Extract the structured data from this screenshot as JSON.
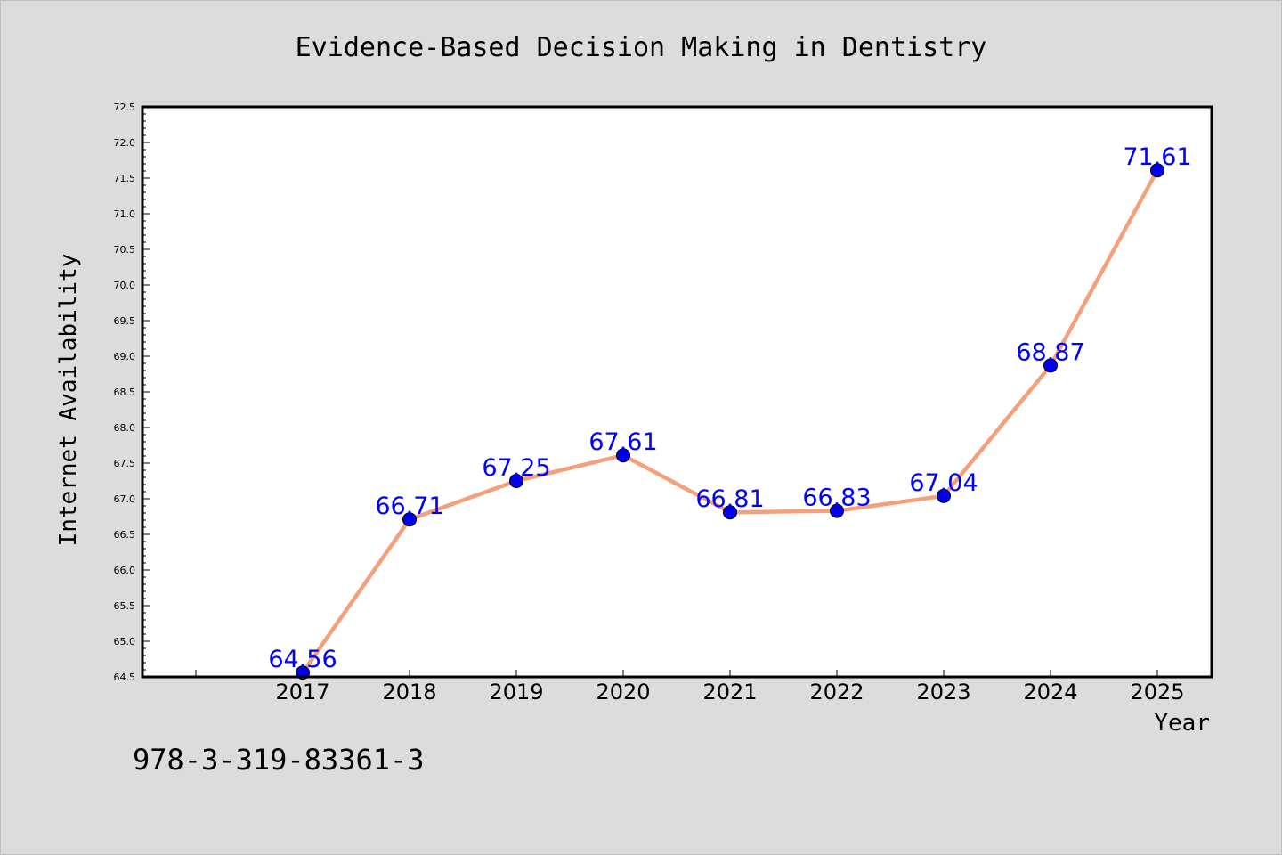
{
  "chart_data": {
    "type": "line",
    "title": "Evidence-Based Decision Making in Dentistry",
    "xlabel": "Year",
    "ylabel": "Internet Availability",
    "categories": [
      "2017",
      "2018",
      "2019",
      "2020",
      "2021",
      "2022",
      "2023",
      "2024",
      "2025"
    ],
    "series": [
      {
        "values": [
          64.56,
          66.71,
          67.25,
          67.61,
          66.81,
          66.83,
          67.04,
          68.87,
          71.61
        ],
        "data_labels": [
          "64.56",
          "66.71",
          "67.25",
          "67.61",
          "66.81",
          "66.83",
          "67.04",
          "68.87",
          "71.61"
        ]
      }
    ],
    "ylim": [
      64.5,
      72.5
    ],
    "yticks": [
      "64.5",
      "65.0",
      "65.5",
      "66.0",
      "66.5",
      "67.0",
      "67.5",
      "68.0",
      "68.5",
      "69.0",
      "69.5",
      "70.0",
      "70.5",
      "71.0",
      "71.5",
      "72.0",
      "72.5"
    ],
    "grid": false,
    "legend": "none",
    "colors": {
      "line": "#f4a07c",
      "marker": "#0000ee",
      "data_label": "#0000ff",
      "plot_background": "#ffffff",
      "page_background": "#dcdcdc"
    }
  },
  "footnote": "978-3-319-83361-3"
}
